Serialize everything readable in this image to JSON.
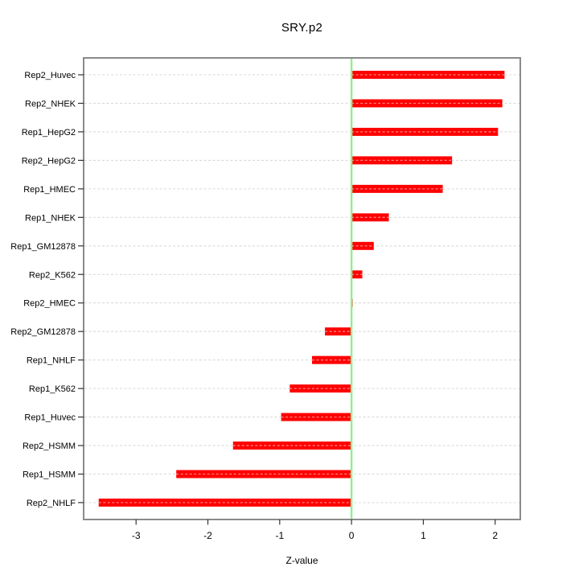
{
  "title": "SRY.p2",
  "chart_data": {
    "type": "bar",
    "orientation": "horizontal",
    "title": "SRY.p2",
    "xlabel": "Z-value",
    "ylabel": "",
    "categories": [
      "Rep2_Huvec",
      "Rep2_NHEK",
      "Rep1_HepG2",
      "Rep2_HepG2",
      "Rep1_HMEC",
      "Rep1_NHEK",
      "Rep1_GM12878",
      "Rep2_K562",
      "Rep2_HMEC",
      "Rep2_GM12878",
      "Rep1_NHLF",
      "Rep1_K562",
      "Rep1_Huvec",
      "Rep2_HSMM",
      "Rep1_HSMM",
      "Rep2_NHLF"
    ],
    "values": [
      2.13,
      2.1,
      2.04,
      1.4,
      1.27,
      0.52,
      0.31,
      0.15,
      0.0,
      -0.37,
      -0.55,
      -0.86,
      -0.98,
      -1.65,
      -2.44,
      -3.52
    ],
    "xlim": [
      -3.73,
      2.35
    ],
    "xticks": [
      -3,
      -2,
      -1,
      0,
      1,
      2
    ],
    "grid": "dotted-horizontal-per-category",
    "legend": "none",
    "colors": {
      "bar": "#ff0000",
      "bar_dash_overlay": "rgba(255,255,255,0.5)",
      "zero_line": "#90ee90",
      "gridline": "#d9d9d9",
      "box": "#8a8a8a",
      "tick": "#333333",
      "text": "#000000",
      "background": "#ffffff"
    }
  }
}
